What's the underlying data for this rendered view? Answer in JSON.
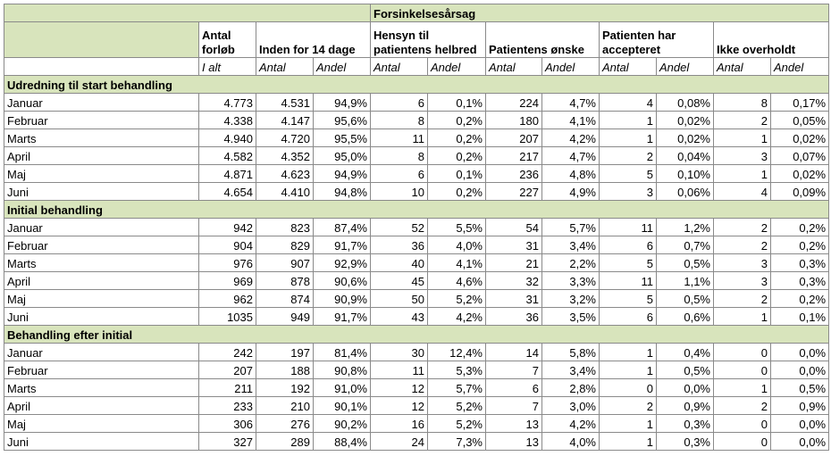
{
  "header": {
    "title": "Forsinkelsesårsag",
    "columns": [
      "Antal forløb",
      "Inden for 14 dage",
      "Hensyn til patientens helbred",
      "Patientens ønske",
      "Patienten har accepteret",
      "Ikke overholdt"
    ],
    "subcolumns": [
      "I alt",
      "Antal",
      "Andel",
      "Antal",
      "Andel",
      "Antal",
      "Andel",
      "Antal",
      "Andel",
      "Antal",
      "Andel"
    ]
  },
  "sections": [
    {
      "name": "Udredning til start behandling",
      "rows": [
        [
          "Januar",
          "4.773",
          "4.531",
          "94,9%",
          "6",
          "0,1%",
          "224",
          "4,7%",
          "4",
          "0,08%",
          "8",
          "0,17%"
        ],
        [
          "Februar",
          "4.338",
          "4.147",
          "95,6%",
          "8",
          "0,2%",
          "180",
          "4,1%",
          "1",
          "0,02%",
          "2",
          "0,05%"
        ],
        [
          "Marts",
          "4.940",
          "4.720",
          "95,5%",
          "11",
          "0,2%",
          "207",
          "4,2%",
          "1",
          "0,02%",
          "1",
          "0,02%"
        ],
        [
          "April",
          "4.582",
          "4.352",
          "95,0%",
          "8",
          "0,2%",
          "217",
          "4,7%",
          "2",
          "0,04%",
          "3",
          "0,07%"
        ],
        [
          "Maj",
          "4.871",
          "4.623",
          "94,9%",
          "6",
          "0,1%",
          "236",
          "4,8%",
          "5",
          "0,10%",
          "1",
          "0,02%"
        ],
        [
          "Juni",
          "4.654",
          "4.410",
          "94,8%",
          "10",
          "0,2%",
          "227",
          "4,9%",
          "3",
          "0,06%",
          "4",
          "0,09%"
        ]
      ]
    },
    {
      "name": "Initial behandling",
      "rows": [
        [
          "Januar",
          "942",
          "823",
          "87,4%",
          "52",
          "5,5%",
          "54",
          "5,7%",
          "11",
          "1,2%",
          "2",
          "0,2%"
        ],
        [
          "Februar",
          "904",
          "829",
          "91,7%",
          "36",
          "4,0%",
          "31",
          "3,4%",
          "6",
          "0,7%",
          "2",
          "0,2%"
        ],
        [
          "Marts",
          "976",
          "907",
          "92,9%",
          "40",
          "4,1%",
          "21",
          "2,2%",
          "5",
          "0,5%",
          "3",
          "0,3%"
        ],
        [
          "April",
          "969",
          "878",
          "90,6%",
          "45",
          "4,6%",
          "32",
          "3,3%",
          "11",
          "1,1%",
          "3",
          "0,3%"
        ],
        [
          "Maj",
          "962",
          "874",
          "90,9%",
          "50",
          "5,2%",
          "31",
          "3,2%",
          "5",
          "0,5%",
          "2",
          "0,2%"
        ],
        [
          "Juni",
          "1035",
          "949",
          "91,7%",
          "43",
          "4,2%",
          "36",
          "3,5%",
          "6",
          "0,6%",
          "1",
          "0,1%"
        ]
      ]
    },
    {
      "name": "Behandling efter initial",
      "rows": [
        [
          "Januar",
          "242",
          "197",
          "81,4%",
          "30",
          "12,4%",
          "14",
          "5,8%",
          "1",
          "0,4%",
          "0",
          "0,0%"
        ],
        [
          "Februar",
          "207",
          "188",
          "90,8%",
          "11",
          "5,3%",
          "7",
          "3,4%",
          "1",
          "0,5%",
          "0",
          "0,0%"
        ],
        [
          "Marts",
          "211",
          "192",
          "91,0%",
          "12",
          "5,7%",
          "6",
          "2,8%",
          "0",
          "0,0%",
          "1",
          "0,5%"
        ],
        [
          "April",
          "233",
          "210",
          "90,1%",
          "12",
          "5,2%",
          "7",
          "3,0%",
          "2",
          "0,9%",
          "2",
          "0,9%"
        ],
        [
          "Maj",
          "306",
          "276",
          "90,2%",
          "16",
          "5,2%",
          "13",
          "4,2%",
          "1",
          "0,3%",
          "0",
          "0,0%"
        ],
        [
          "Juni",
          "327",
          "289",
          "88,4%",
          "24",
          "7,3%",
          "13",
          "4,0%",
          "1",
          "0,3%",
          "0",
          "0,0%"
        ]
      ]
    }
  ]
}
